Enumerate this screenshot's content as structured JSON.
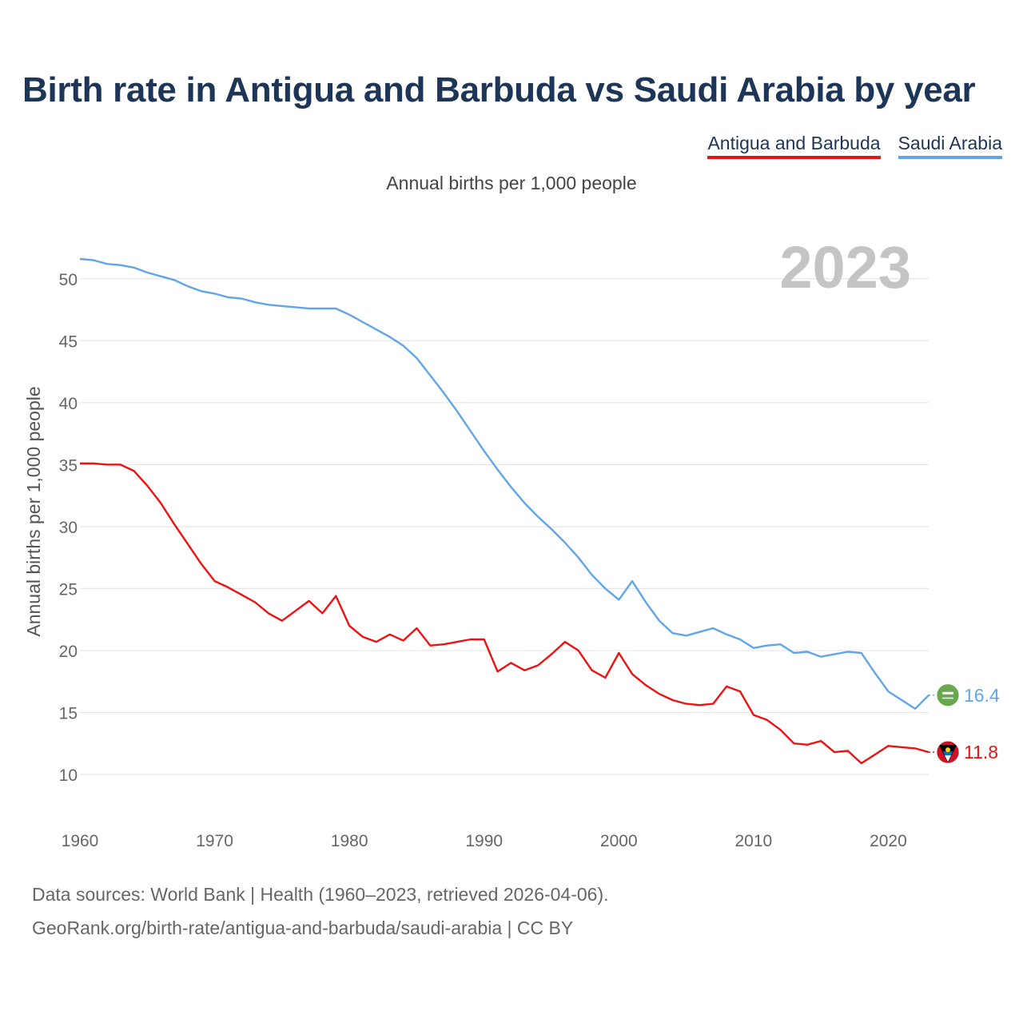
{
  "colors": {
    "antigua": "#ee1111",
    "saudi": "#5fa5e8",
    "title": "#1d3557",
    "grid": "#e6e6e6"
  },
  "chart_data": {
    "type": "line",
    "title": "Birth rate in Antigua and Barbuda vs Saudi Arabia by year",
    "subtitle": "Annual births per 1,000 people",
    "ylabel": "Annual births per 1,000 people",
    "xlabel": "",
    "year_display": "2023",
    "xlim": [
      1960,
      2023
    ],
    "ylim": [
      8,
      52.5
    ],
    "x_ticks": [
      1960,
      1970,
      1980,
      1990,
      2000,
      2010,
      2020
    ],
    "y_ticks": [
      10,
      15,
      20,
      25,
      30,
      35,
      40,
      45,
      50
    ],
    "legend_position": "top-right",
    "x": [
      1960,
      1961,
      1962,
      1963,
      1964,
      1965,
      1966,
      1967,
      1968,
      1969,
      1970,
      1971,
      1972,
      1973,
      1974,
      1975,
      1976,
      1977,
      1978,
      1979,
      1980,
      1981,
      1982,
      1983,
      1984,
      1985,
      1986,
      1987,
      1988,
      1989,
      1990,
      1991,
      1992,
      1993,
      1994,
      1995,
      1996,
      1997,
      1998,
      1999,
      2000,
      2001,
      2002,
      2003,
      2004,
      2005,
      2006,
      2007,
      2008,
      2009,
      2010,
      2011,
      2012,
      2013,
      2014,
      2015,
      2016,
      2017,
      2018,
      2019,
      2020,
      2021,
      2022,
      2023
    ],
    "series": [
      {
        "name": "Antigua and Barbuda",
        "color": "#ee1111",
        "end_label": "11.8",
        "values": [
          35.1,
          35.1,
          35.0,
          35.0,
          34.5,
          33.3,
          31.9,
          30.2,
          28.6,
          27.0,
          25.6,
          25.1,
          24.5,
          23.9,
          23.0,
          22.4,
          23.2,
          24.0,
          23.0,
          24.4,
          22.0,
          21.1,
          20.7,
          21.3,
          20.8,
          21.8,
          20.4,
          20.5,
          20.7,
          20.9,
          20.9,
          18.3,
          19.0,
          18.4,
          18.8,
          19.7,
          20.7,
          20.0,
          18.4,
          17.8,
          19.8,
          18.1,
          17.2,
          16.5,
          16.0,
          15.7,
          15.6,
          15.7,
          17.1,
          16.7,
          14.8,
          14.4,
          13.6,
          12.5,
          12.4,
          12.7,
          11.8,
          11.9,
          10.9,
          11.6,
          12.3,
          12.2,
          12.1,
          11.8
        ]
      },
      {
        "name": "Saudi Arabia",
        "color": "#5fa5e8",
        "end_label": "16.4",
        "values": [
          51.6,
          51.5,
          51.2,
          51.1,
          50.9,
          50.5,
          50.2,
          49.9,
          49.4,
          49.0,
          48.8,
          48.5,
          48.4,
          48.1,
          47.9,
          47.8,
          47.7,
          47.6,
          47.6,
          47.6,
          47.1,
          46.5,
          45.9,
          45.3,
          44.6,
          43.6,
          42.2,
          40.8,
          39.3,
          37.7,
          36.1,
          34.6,
          33.2,
          31.9,
          30.8,
          29.8,
          28.7,
          27.5,
          26.1,
          25.0,
          24.1,
          25.6,
          23.9,
          22.4,
          21.4,
          21.2,
          21.5,
          21.8,
          21.3,
          20.9,
          20.2,
          20.4,
          20.5,
          19.8,
          19.9,
          19.5,
          19.7,
          19.9,
          19.8,
          18.2,
          16.7,
          16.0,
          15.3,
          16.4
        ]
      }
    ]
  },
  "footer": {
    "sources": "Data sources: World Bank | Health (1960–2023, retrieved 2026-04-06).",
    "link": "GeoRank.org/birth-rate/antigua-and-barbuda/saudi-arabia | CC BY"
  }
}
